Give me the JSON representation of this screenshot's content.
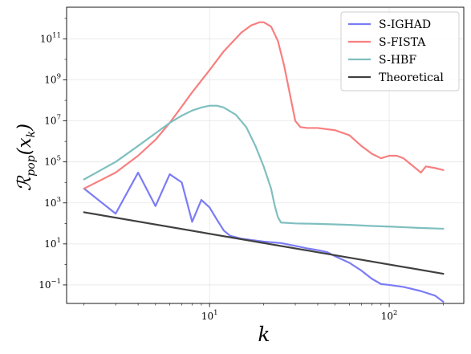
{
  "chart_data": {
    "type": "line",
    "xscale": "log",
    "yscale": "log",
    "xlim": [
      1.6,
      260
    ],
    "ylim": [
      0.0125,
      3500000000000.0
    ],
    "xlabel": "k",
    "ylabel": "R_pop(x_k)",
    "grid": true,
    "legend_position": "top-right",
    "x_ticks": [
      {
        "value": 10,
        "base": "10",
        "exp": "1"
      },
      {
        "value": 100,
        "base": "10",
        "exp": "2"
      }
    ],
    "y_ticks": [
      {
        "value": 0.1,
        "base": "10",
        "exp": "−1"
      },
      {
        "value": 10,
        "base": "10",
        "exp": "1"
      },
      {
        "value": 1000,
        "base": "10",
        "exp": "3"
      },
      {
        "value": 100000,
        "base": "10",
        "exp": "5"
      },
      {
        "value": 10000000,
        "base": "10",
        "exp": "7"
      },
      {
        "value": 1000000000,
        "base": "10",
        "exp": "9"
      },
      {
        "value": 100000000000,
        "base": "10",
        "exp": "11"
      }
    ],
    "series": [
      {
        "name": "S-IGHAD",
        "color": "#7b7bf7",
        "points": [
          [
            2,
            5000
          ],
          [
            3,
            300
          ],
          [
            4,
            30000
          ],
          [
            5,
            700
          ],
          [
            6,
            25000
          ],
          [
            7,
            10000
          ],
          [
            8,
            120
          ],
          [
            9,
            1400
          ],
          [
            10,
            600
          ],
          [
            11,
            150
          ],
          [
            12,
            45
          ],
          [
            13,
            25
          ],
          [
            15,
            18
          ],
          [
            20,
            13
          ],
          [
            25,
            11
          ],
          [
            30,
            8
          ],
          [
            35,
            6
          ],
          [
            40,
            5
          ],
          [
            45,
            4
          ],
          [
            50,
            2.5
          ],
          [
            60,
            1.2
          ],
          [
            70,
            0.5
          ],
          [
            80,
            0.2
          ],
          [
            90,
            0.11
          ],
          [
            100,
            0.1
          ],
          [
            120,
            0.08
          ],
          [
            150,
            0.05
          ],
          [
            180,
            0.03
          ],
          [
            200,
            0.015
          ]
        ]
      },
      {
        "name": "S-FISTA",
        "color": "#f77f7f",
        "points": [
          [
            2,
            5000
          ],
          [
            3,
            30000
          ],
          [
            4,
            200000
          ],
          [
            5,
            1200000
          ],
          [
            6,
            8000000
          ],
          [
            7,
            50000000
          ],
          [
            8,
            250000000
          ],
          [
            10,
            3000000000
          ],
          [
            12,
            25000000000
          ],
          [
            15,
            200000000000
          ],
          [
            17,
            450000000000
          ],
          [
            19,
            650000000000
          ],
          [
            20,
            650000000000
          ],
          [
            22,
            400000000000
          ],
          [
            24,
            80000000000
          ],
          [
            26,
            5000000000
          ],
          [
            28,
            200000000
          ],
          [
            30,
            10000000
          ],
          [
            32,
            5000000
          ],
          [
            35,
            4500000
          ],
          [
            40,
            4500000
          ],
          [
            50,
            3500000
          ],
          [
            60,
            2000000
          ],
          [
            70,
            600000
          ],
          [
            80,
            250000
          ],
          [
            90,
            150000
          ],
          [
            100,
            200000
          ],
          [
            110,
            200000
          ],
          [
            120,
            150000
          ],
          [
            140,
            50000
          ],
          [
            150,
            30000
          ],
          [
            160,
            60000
          ],
          [
            180,
            50000
          ],
          [
            200,
            40000
          ]
        ]
      },
      {
        "name": "S-HBF",
        "color": "#7fbfbf",
        "points": [
          [
            2,
            14000
          ],
          [
            3,
            100000
          ],
          [
            4,
            600000
          ],
          [
            5,
            2500000
          ],
          [
            6,
            8000000
          ],
          [
            7,
            18000000
          ],
          [
            8,
            32000000
          ],
          [
            9,
            45000000
          ],
          [
            10,
            55000000
          ],
          [
            11,
            55000000
          ],
          [
            12,
            45000000
          ],
          [
            14,
            20000000
          ],
          [
            16,
            5000000
          ],
          [
            18,
            600000
          ],
          [
            20,
            60000
          ],
          [
            22,
            5000
          ],
          [
            23,
            800
          ],
          [
            24,
            200
          ],
          [
            25,
            110
          ],
          [
            30,
            100
          ],
          [
            40,
            95
          ],
          [
            60,
            85
          ],
          [
            80,
            75
          ],
          [
            100,
            70
          ],
          [
            150,
            60
          ],
          [
            200,
            55
          ]
        ]
      },
      {
        "name": "Theoretical",
        "color": "#404040",
        "points": [
          [
            2,
            350
          ],
          [
            200,
            0.35
          ]
        ]
      }
    ]
  }
}
